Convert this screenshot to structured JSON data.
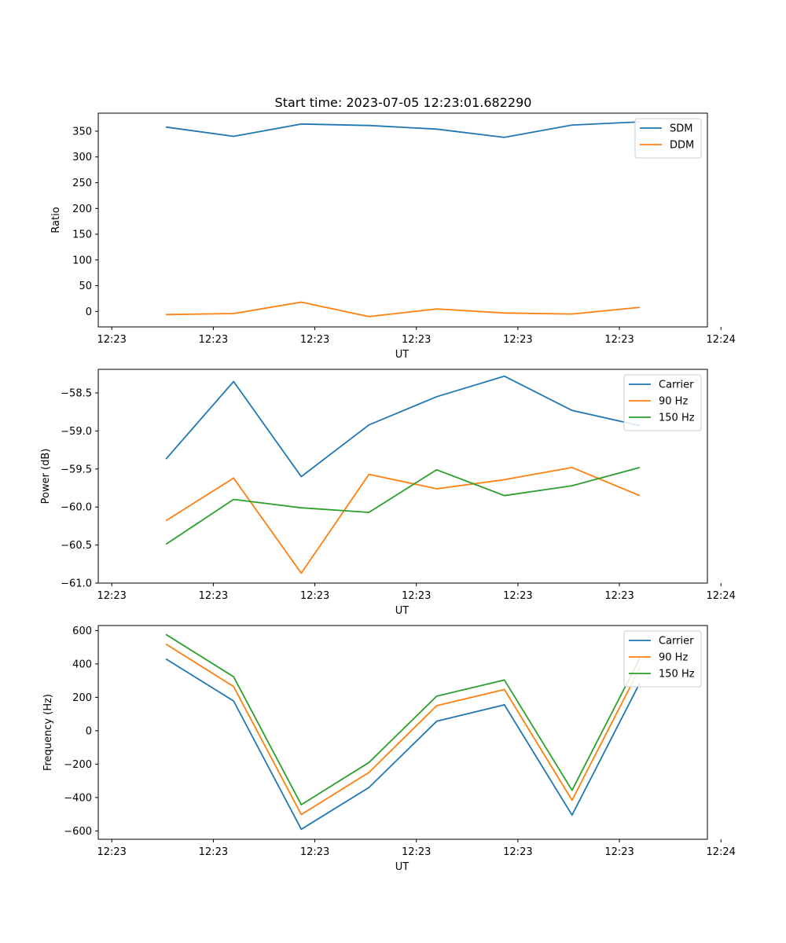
{
  "figure_title": "Start time: 2023-07-05 12:23:01.682290",
  "colors": {
    "blue": "#1f77b4",
    "orange": "#ff7f0e",
    "green": "#2ca02c"
  },
  "chart_data": [
    {
      "type": "line",
      "id": "ratio",
      "title": "Start time: 2023-07-05 12:23:01.682290",
      "xlabel": "UT",
      "ylabel": "Ratio",
      "xlim": [
        0,
        9
      ],
      "ylim": [
        -30,
        385
      ],
      "xticks": [
        0.2,
        1.7,
        3.2,
        4.7,
        6.2,
        7.7,
        9.2
      ],
      "xtick_labels": [
        "12:23",
        "12:23",
        "12:23",
        "12:23",
        "12:23",
        "12:23",
        "12:24"
      ],
      "yticks": [
        0,
        50,
        100,
        150,
        200,
        250,
        300,
        350
      ],
      "ytick_labels": [
        "0",
        "50",
        "100",
        "150",
        "200",
        "250",
        "300",
        "350"
      ],
      "x": [
        1,
        2,
        3,
        4,
        5,
        6,
        7,
        8
      ],
      "legend_position": "upper-right",
      "series": [
        {
          "name": "SDM",
          "color": "#1f77b4",
          "values": [
            358,
            340,
            364,
            361,
            354,
            338,
            362,
            368
          ]
        },
        {
          "name": "DDM",
          "color": "#ff7f0e",
          "values": [
            -6,
            -4,
            18,
            -10,
            5,
            -3,
            -5,
            8
          ]
        }
      ]
    },
    {
      "type": "line",
      "id": "power",
      "xlabel": "UT",
      "ylabel": "Power (dB)",
      "xlim": [
        0,
        9
      ],
      "ylim": [
        -61.0,
        -58.19
      ],
      "xticks": [
        0.2,
        1.7,
        3.2,
        4.7,
        6.2,
        7.7,
        9.2
      ],
      "xtick_labels": [
        "12:23",
        "12:23",
        "12:23",
        "12:23",
        "12:23",
        "12:23",
        "12:24"
      ],
      "yticks": [
        -61.0,
        -60.5,
        -60.0,
        -59.5,
        -59.0,
        -58.5
      ],
      "ytick_labels": [
        "−61.0",
        "−60.5",
        "−60.0",
        "−59.5",
        "−59.0",
        "−58.5"
      ],
      "x": [
        1,
        2,
        3,
        4,
        5,
        6,
        7,
        8
      ],
      "legend_position": "upper-right",
      "series": [
        {
          "name": "Carrier",
          "color": "#1f77b4",
          "values": [
            -59.37,
            -58.35,
            -59.6,
            -58.92,
            -58.55,
            -58.28,
            -58.73,
            -58.93
          ]
        },
        {
          "name": "90 Hz",
          "color": "#ff7f0e",
          "values": [
            -60.18,
            -59.62,
            -60.87,
            -59.57,
            -59.76,
            -59.64,
            -59.48,
            -59.85
          ]
        },
        {
          "name": "150 Hz",
          "color": "#2ca02c",
          "values": [
            -60.49,
            -59.9,
            -60.01,
            -60.07,
            -59.51,
            -59.85,
            -59.72,
            -59.48
          ]
        }
      ]
    },
    {
      "type": "line",
      "id": "frequency",
      "xlabel": "UT",
      "ylabel": "Frequency (Hz)",
      "xlim": [
        0,
        9
      ],
      "ylim": [
        -650,
        630
      ],
      "xticks": [
        0.2,
        1.7,
        3.2,
        4.7,
        6.2,
        7.7,
        9.2
      ],
      "xtick_labels": [
        "12:23",
        "12:23",
        "12:23",
        "12:23",
        "12:23",
        "12:23",
        "12:24"
      ],
      "yticks": [
        -600,
        -400,
        -200,
        0,
        200,
        400,
        600
      ],
      "ytick_labels": [
        "−600",
        "−400",
        "−200",
        "0",
        "200",
        "400",
        "600"
      ],
      "x": [
        1,
        2,
        3,
        4,
        5,
        6,
        7,
        8
      ],
      "legend_position": "upper-right",
      "series": [
        {
          "name": "Carrier",
          "color": "#1f77b4",
          "values": [
            430,
            178,
            -590,
            -340,
            57,
            155,
            -505,
            285
          ]
        },
        {
          "name": "90 Hz",
          "color": "#ff7f0e",
          "values": [
            519,
            265,
            -502,
            -250,
            150,
            247,
            -416,
            374
          ]
        },
        {
          "name": "150 Hz",
          "color": "#2ca02c",
          "values": [
            577,
            323,
            -443,
            -190,
            207,
            304,
            -357,
            433
          ]
        }
      ]
    }
  ]
}
